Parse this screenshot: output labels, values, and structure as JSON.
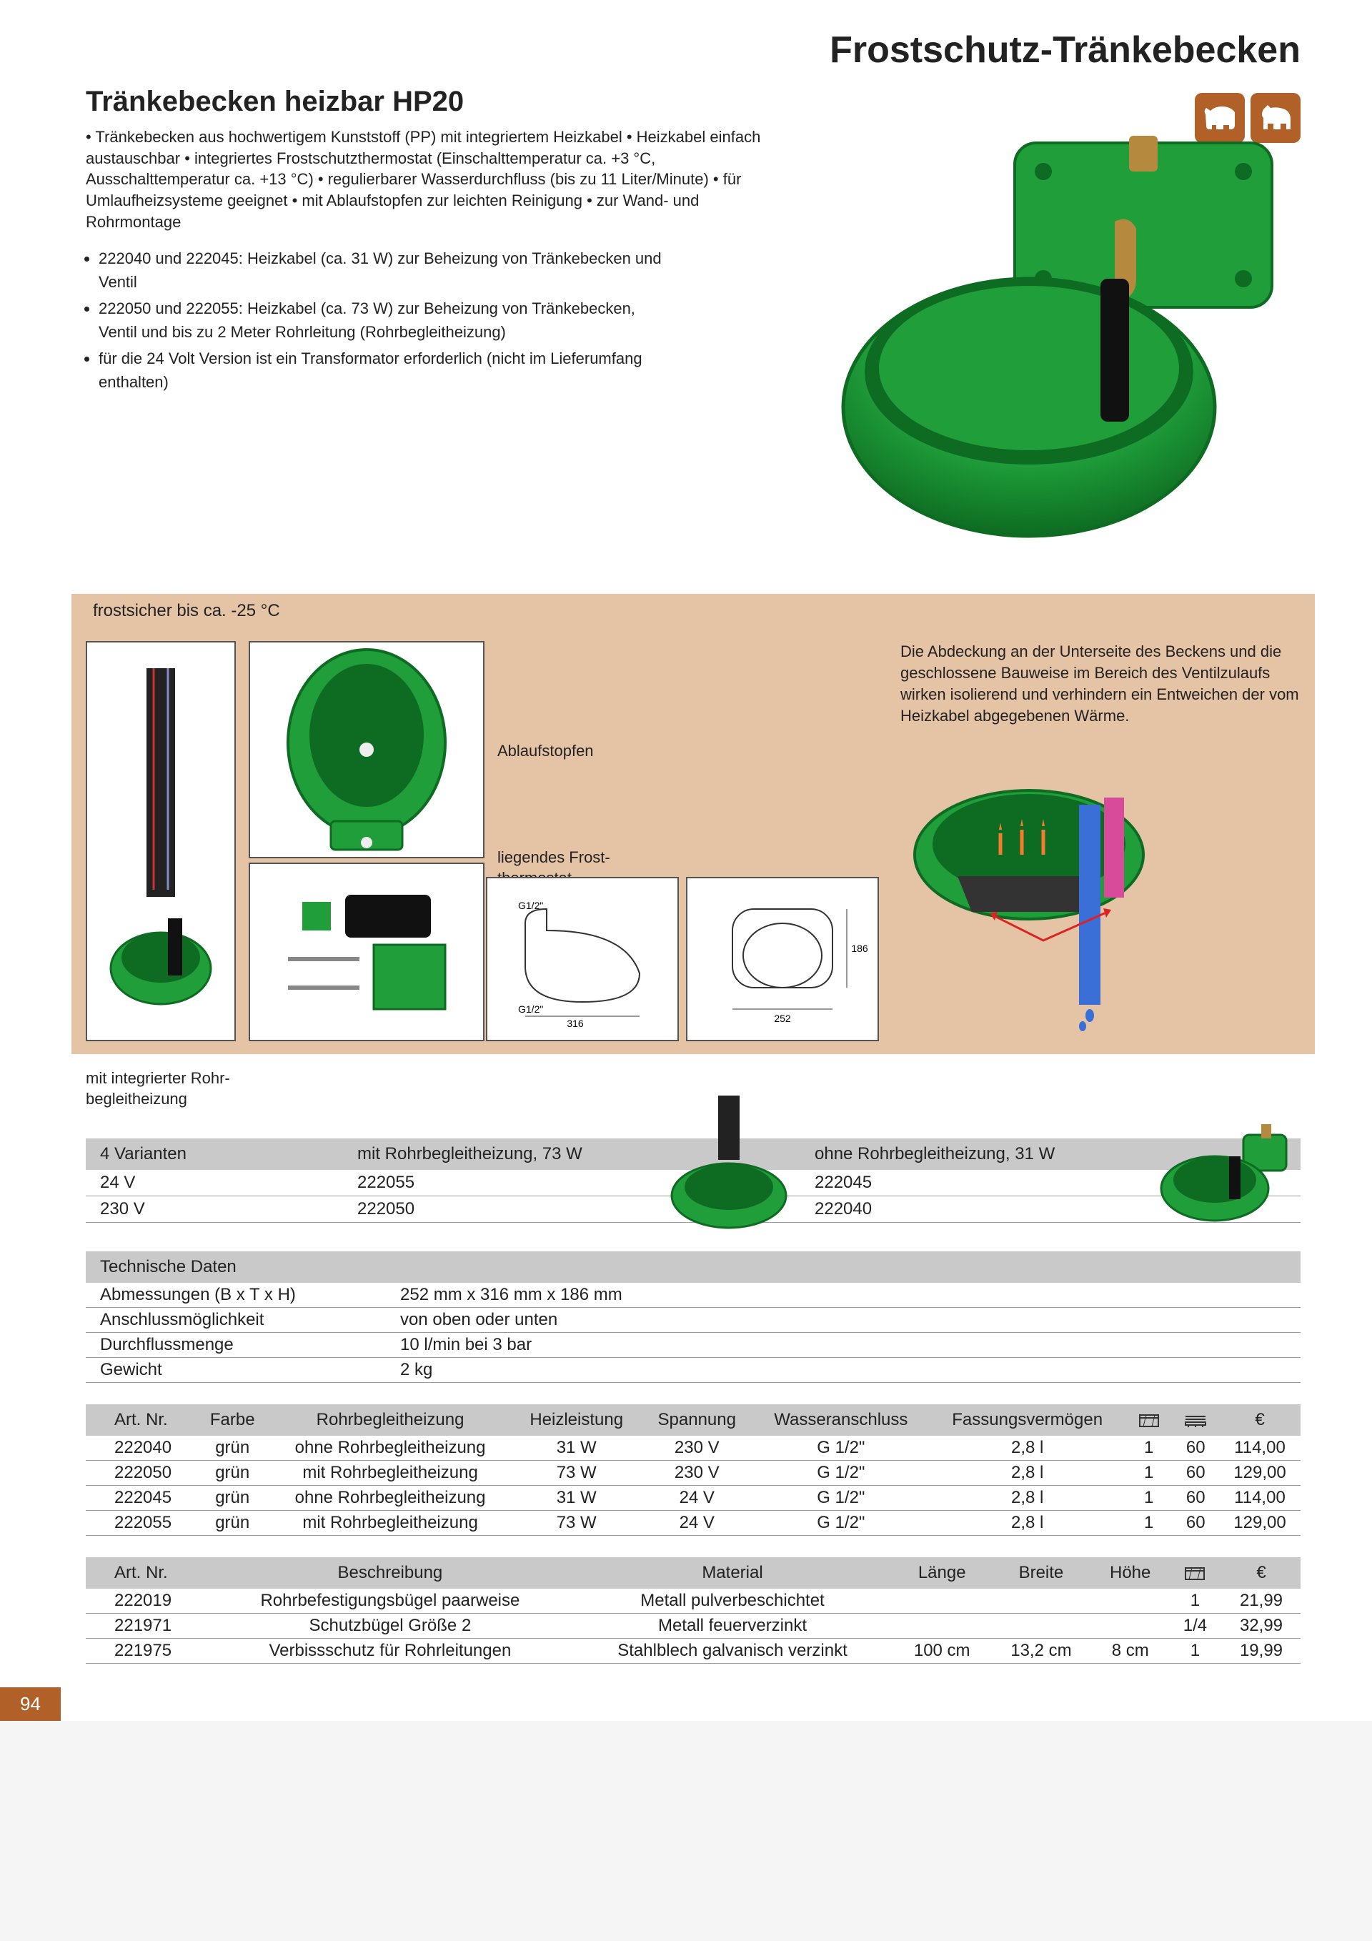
{
  "page_title": "Frostschutz-Tränkebecken",
  "section_title": "Tränkebecken heizbar HP20",
  "intro": "• Tränkebecken aus hochwertigem Kunststoff (PP) mit integriertem Heizkabel • Heizkabel einfach austauschbar • integriertes Frostschutzthermostat (Einschalttemperatur ca. +3 °C, Ausschalttemperatur ca. +13 °C) • regulierbarer Wasserdurchfluss (bis zu 11 Liter/Minute) • für Umlaufheizsysteme geeignet • mit Ablaufstopfen zur leichten Reinigung • zur Wand- und Rohrmontage",
  "bullets": [
    "222040 und 222045: Heizkabel (ca. 31 W) zur Beheizung von Tränkebecken und Ventil",
    "222050 und 222055: Heizkabel (ca. 73 W) zur Beheizung von Tränkebecken, Ventil und bis zu 2 Meter Rohrleitung (Rohrbegleitheizung)",
    "für die 24 Volt Version ist ein Transformator erforderlich (nicht im Lieferumfang enthalten)"
  ],
  "frost_bar": "frostsicher bis ca. -25 °C",
  "detail_labels": {
    "drain": "Ablaufstopfen",
    "thermo": "liegendes Frost-\nthermostat"
  },
  "detail_right_text": "Die Abdeckung an der Unterseite des Beckens und die geschlossene Bauweise im Bereich des Ventilzulaufs wirken isolierend und verhindern ein Entweichen der vom Heizkabel abgegebenen Wärme.",
  "sub_caption": "mit integrierter Rohr-\nbegleitheizung",
  "variants": {
    "header": [
      "4 Varianten",
      "mit Rohrbegleitheizung, 73 W",
      "ohne Rohrbegleitheizung, 31 W"
    ],
    "rows": [
      [
        "24 V",
        "222055",
        "222045"
      ],
      [
        "230 V",
        "222050",
        "222040"
      ]
    ]
  },
  "tech": {
    "header": "Technische Daten",
    "rows": [
      [
        "Abmessungen (B x T x H)",
        "252 mm x 316 mm x 186 mm"
      ],
      [
        "Anschlussmöglichkeit",
        "von oben oder unten"
      ],
      [
        "Durchflussmenge",
        "10 l/min bei 3 bar"
      ],
      [
        "Gewicht",
        "2 kg"
      ]
    ]
  },
  "price1": {
    "columns": [
      "Art. Nr.",
      "Farbe",
      "Rohrbegleitheizung",
      "Heizleistung",
      "Spannung",
      "Wasseranschluss",
      "Fassungsvermögen",
      "__box",
      "__pallet",
      "€"
    ],
    "rows": [
      [
        "222040",
        "grün",
        "ohne Rohrbegleitheizung",
        "31 W",
        "230 V",
        "G 1/2\"",
        "2,8 l",
        "1",
        "60",
        "114,00"
      ],
      [
        "222050",
        "grün",
        "mit Rohrbegleitheizung",
        "73 W",
        "230 V",
        "G 1/2\"",
        "2,8 l",
        "1",
        "60",
        "129,00"
      ],
      [
        "222045",
        "grün",
        "ohne Rohrbegleitheizung",
        "31 W",
        "24 V",
        "G 1/2\"",
        "2,8 l",
        "1",
        "60",
        "114,00"
      ],
      [
        "222055",
        "grün",
        "mit Rohrbegleitheizung",
        "73 W",
        "24 V",
        "G 1/2\"",
        "2,8 l",
        "1",
        "60",
        "129,00"
      ]
    ]
  },
  "price2": {
    "columns": [
      "Art. Nr.",
      "Beschreibung",
      "Material",
      "Länge",
      "Breite",
      "Höhe",
      "__box",
      "€"
    ],
    "rows": [
      [
        "222019",
        "Rohrbefestigungsbügel paarweise",
        "Metall pulverbeschichtet",
        "",
        "",
        "",
        "1",
        "21,99"
      ],
      [
        "221971",
        "Schutzbügel Größe 2",
        "Metall feuerverzinkt",
        "",
        "",
        "",
        "1/4",
        "32,99"
      ],
      [
        "221975",
        "Verbissschutz für Rohrleitungen",
        "Stahlblech galvanisch verzinkt",
        "100 cm",
        "13,2 cm",
        "8 cm",
        "1",
        "19,99"
      ]
    ]
  },
  "page_num": "94",
  "colors": {
    "accent": "#b16028",
    "beige": "#e5c4a6",
    "grey": "#c9c9c9",
    "bowl_green": "#1f9e3a",
    "bowl_dark": "#0e6b22"
  },
  "dimensions": {
    "width_label": "252",
    "depth_label": "316",
    "height_label": "186",
    "thread": "G1/2\""
  }
}
